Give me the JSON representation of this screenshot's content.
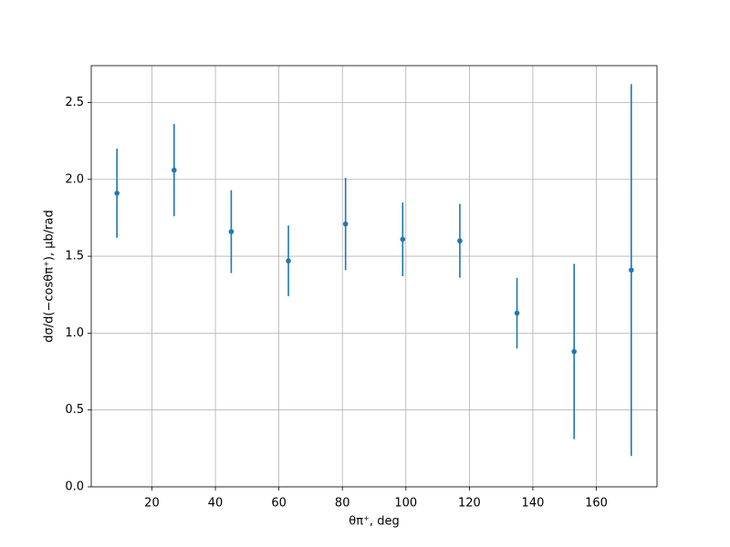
{
  "chart_data": {
    "type": "errorbar",
    "xlabel": "θπ⁺, deg",
    "ylabel": "dσ/d(−cosθπ⁺), μb/rad",
    "x": [
      9,
      27,
      45,
      63,
      81,
      99,
      117,
      135,
      153,
      171
    ],
    "series": [
      {
        "color": "#1f77b4",
        "values": [
          1.91,
          2.06,
          1.66,
          1.47,
          1.71,
          1.61,
          1.6,
          1.13,
          0.88,
          1.41
        ],
        "errors": [
          0.29,
          0.3,
          0.27,
          0.23,
          0.3,
          0.24,
          0.24,
          0.23,
          0.57,
          1.21
        ]
      }
    ],
    "xlim": [
      0.9,
      179.1
    ],
    "ylim": [
      0,
      2.74
    ],
    "xticks": [
      20,
      40,
      60,
      80,
      100,
      120,
      140,
      160
    ],
    "yticks": [
      {
        "value": 0,
        "label": "0.0"
      },
      0.5,
      {
        "value": 1,
        "label": "1.0"
      },
      1.5,
      {
        "value": 2,
        "label": "2.0"
      },
      2.5
    ],
    "grid": true
  }
}
